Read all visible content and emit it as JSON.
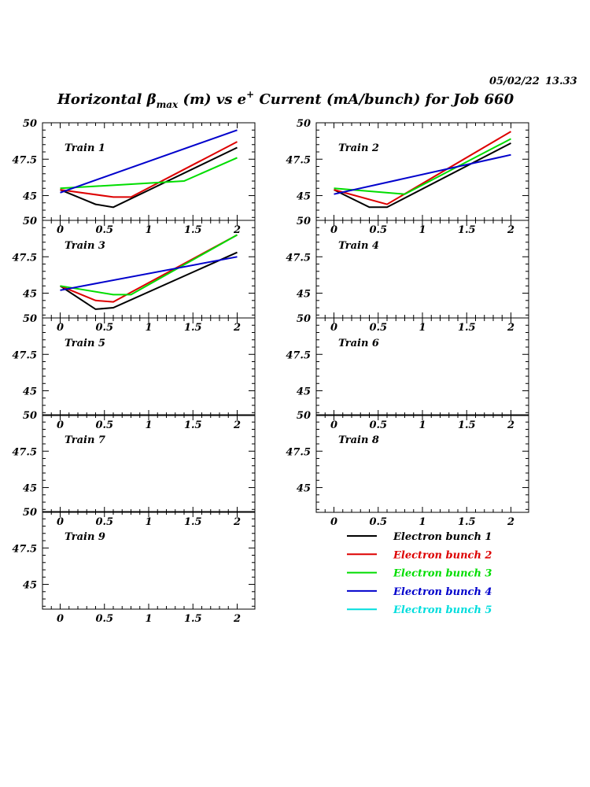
{
  "header": {
    "date": "05/02/22",
    "time": "13.33",
    "title_prefix": "Horizontal ",
    "title_beta": "β",
    "title_beta_sub": "max",
    "title_mid": " (m) vs e",
    "title_sup": "+",
    "title_suffix": " Current (mA/bunch) for Job 660"
  },
  "axes": {
    "xlim": [
      -0.2,
      2.2
    ],
    "ylim": [
      43.3,
      50
    ],
    "x_ticks": [
      0,
      0.5,
      1,
      1.5,
      2
    ],
    "x_tick_labels": [
      "0",
      "0.5",
      "1",
      "1.5",
      "2"
    ],
    "y_ticks": [
      45,
      47.5,
      50
    ],
    "y_tick_labels": [
      "45",
      "47.5",
      "50"
    ]
  },
  "legend": {
    "placement": "bottom-right",
    "entries": [
      {
        "name": "Electron bunch 1",
        "color": "#000000"
      },
      {
        "name": "Electron bunch 2",
        "color": "#dd0000"
      },
      {
        "name": "Electron bunch 3",
        "color": "#00dd00"
      },
      {
        "name": "Electron bunch 4",
        "color": "#0000cc"
      },
      {
        "name": "Electron bunch 5",
        "color": "#00dddd"
      }
    ]
  },
  "chart_data": [
    {
      "type": "line",
      "title": "Train 1",
      "series": [
        {
          "series_index": 0,
          "x": [
            0,
            0.4,
            0.6,
            2
          ],
          "y": [
            45.4,
            44.4,
            44.2,
            48.3
          ]
        },
        {
          "series_index": 1,
          "x": [
            0,
            0.6,
            0.8,
            2
          ],
          "y": [
            45.4,
            44.9,
            44.9,
            48.7
          ]
        },
        {
          "series_index": 2,
          "x": [
            0,
            1.4,
            2
          ],
          "y": [
            45.5,
            46.0,
            47.6
          ]
        },
        {
          "series_index": 3,
          "x": [
            0,
            2
          ],
          "y": [
            45.2,
            49.5
          ]
        }
      ]
    },
    {
      "type": "line",
      "title": "Train 2",
      "series": [
        {
          "series_index": 0,
          "x": [
            0,
            0.4,
            0.6,
            2
          ],
          "y": [
            45.4,
            44.2,
            44.2,
            48.6
          ]
        },
        {
          "series_index": 1,
          "x": [
            0,
            0.6,
            2
          ],
          "y": [
            45.4,
            44.4,
            49.4
          ]
        },
        {
          "series_index": 2,
          "x": [
            0,
            0.8,
            2
          ],
          "y": [
            45.5,
            45.1,
            48.9
          ]
        },
        {
          "series_index": 3,
          "x": [
            0,
            2
          ],
          "y": [
            45.1,
            47.8
          ]
        }
      ]
    },
    {
      "type": "line",
      "title": "Train 3",
      "series": [
        {
          "series_index": 0,
          "x": [
            0,
            0.4,
            0.6,
            2
          ],
          "y": [
            45.5,
            43.9,
            44.0,
            47.8
          ]
        },
        {
          "series_index": 1,
          "x": [
            0,
            0.4,
            0.6,
            2
          ],
          "y": [
            45.5,
            44.5,
            44.4,
            49.0
          ]
        },
        {
          "series_index": 2,
          "x": [
            0,
            0.6,
            0.8,
            2
          ],
          "y": [
            45.5,
            44.9,
            44.9,
            49.0
          ]
        },
        {
          "series_index": 3,
          "x": [
            0,
            2
          ],
          "y": [
            45.2,
            47.5
          ]
        }
      ]
    },
    {
      "type": "line",
      "title": "Train 4",
      "series": []
    },
    {
      "type": "line",
      "title": "Train 5",
      "series": []
    },
    {
      "type": "line",
      "title": "Train 6",
      "series": []
    },
    {
      "type": "line",
      "title": "Train 7",
      "series": []
    },
    {
      "type": "line",
      "title": "Train 8",
      "series": []
    },
    {
      "type": "line",
      "title": "Train 9",
      "series": []
    }
  ]
}
